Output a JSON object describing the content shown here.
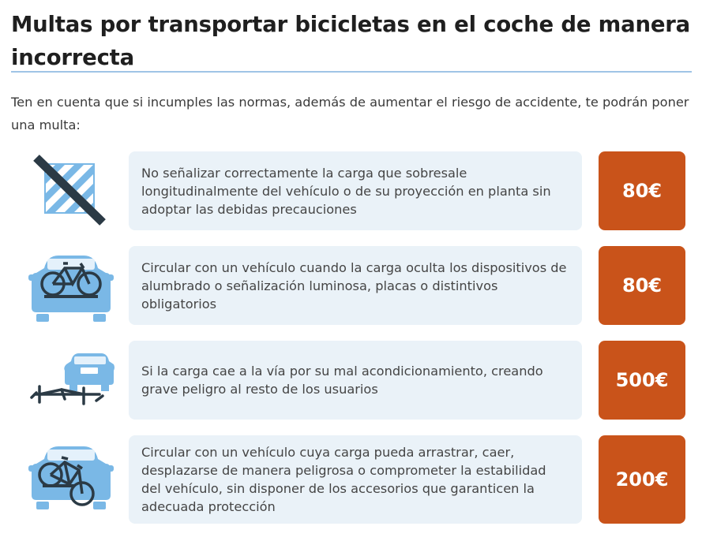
{
  "title": "Multas por transportar bicicletas en el coche de manera incorrecta",
  "intro": "Ten en cuenta que si incumples las normas, además de aumentar el riesgo de accidente, te podrán poner una multa:",
  "colors": {
    "accent_rule": "#9fc4e6",
    "card_background": "#eaf2f8",
    "fine_background": "#c9531a",
    "icon_blue": "#7ab8e6"
  },
  "fines": [
    {
      "icon": "crossed-out-warning-panel-icon",
      "description": "No señalizar correctamente la carga que sobresale longitudinalmente del vehículo o de su proyección en planta sin adoptar las debidas precauciones",
      "amount": "80€"
    },
    {
      "icon": "car-bike-covering-lights-icon",
      "description": "Circular con un vehículo cuando la carga oculta los dispositivos de alumbrado o señalización luminosa, placas o distintivos obligatorios",
      "amount": "80€"
    },
    {
      "icon": "bike-fallen-from-car-icon",
      "description": "Si la carga cae a la vía por su mal acondicionamiento, creando grave peligro al resto de los usuarios",
      "amount": "500€"
    },
    {
      "icon": "car-bike-dragging-icon",
      "description": "Circular con un vehículo cuya carga pueda arrastrar, caer, desplazarse de manera peligrosa o comprometer la estabilidad del vehículo, sin disponer de los accesorios que garanticen la adecuada protección",
      "amount": "200€"
    }
  ]
}
